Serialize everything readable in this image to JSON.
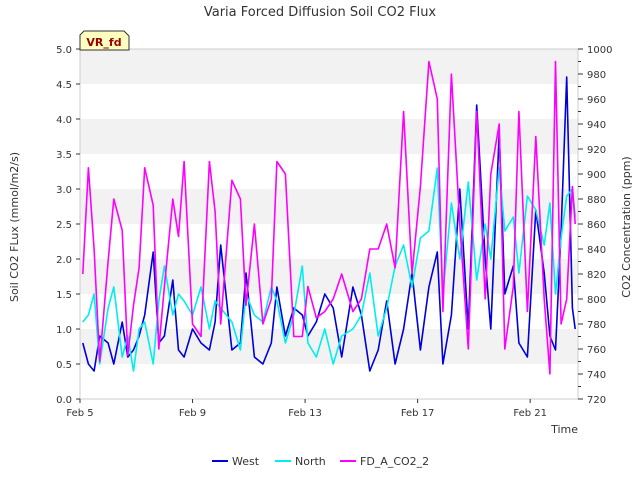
{
  "chart_data": {
    "type": "line",
    "title": "Varia Forced Diffusion Soil CO2 Flux",
    "badge": "VR_fd",
    "xlabel": "Time",
    "ylabel_left": "Soil CO2 FLux (mmol/m2/s)",
    "ylabel_right": "CO2 Concentration (ppm)",
    "x_ticks": [
      "Feb 5",
      "Feb 9",
      "Feb 13",
      "Feb 17",
      "Feb 21"
    ],
    "x_tick_days": [
      5,
      9,
      13,
      17,
      21
    ],
    "xlim_days": [
      5,
      22.7
    ],
    "ylim_left": [
      0,
      5
    ],
    "ylim_right": [
      720,
      1000
    ],
    "y_ticks_left": [
      "0.0",
      "0.5",
      "1.0",
      "1.5",
      "2.0",
      "2.5",
      "3.0",
      "3.5",
      "4.0",
      "4.5",
      "5.0"
    ],
    "y_ticks_right": [
      "720",
      "740",
      "760",
      "780",
      "800",
      "820",
      "840",
      "860",
      "880",
      "900",
      "920",
      "940",
      "960",
      "980",
      "1000"
    ],
    "legend_position": "bottom-center",
    "grid": "alternating horizontal bands",
    "series": [
      {
        "name": "West",
        "color": "#0000dd",
        "axis": "left",
        "x": [
          5.1,
          5.3,
          5.5,
          5.7,
          6.0,
          6.2,
          6.5,
          6.7,
          6.9,
          7.1,
          7.3,
          7.6,
          7.8,
          8.0,
          8.3,
          8.5,
          8.7,
          9.0,
          9.3,
          9.6,
          9.8,
          10.0,
          10.4,
          10.7,
          10.9,
          11.2,
          11.5,
          11.8,
          12.0,
          12.3,
          12.6,
          12.9,
          13.1,
          13.4,
          13.7,
          14.0,
          14.3,
          14.7,
          15.0,
          15.3,
          15.6,
          15.9,
          16.2,
          16.5,
          16.8,
          17.1,
          17.4,
          17.7,
          17.9,
          18.2,
          18.5,
          18.8,
          19.1,
          19.4,
          19.6,
          19.9,
          20.1,
          20.4,
          20.6,
          20.9,
          21.2,
          21.5,
          21.7,
          21.9,
          22.1,
          22.3,
          22.5,
          22.6
        ],
        "y": [
          0.8,
          0.5,
          0.4,
          0.9,
          0.8,
          0.5,
          1.1,
          0.6,
          0.7,
          0.9,
          1.2,
          2.1,
          0.8,
          0.9,
          1.7,
          0.7,
          0.6,
          1.0,
          0.8,
          0.7,
          1.1,
          2.2,
          0.7,
          0.8,
          1.8,
          0.6,
          0.5,
          0.8,
          1.6,
          0.9,
          1.3,
          1.2,
          0.9,
          1.1,
          1.5,
          1.3,
          0.6,
          1.6,
          1.2,
          0.4,
          0.7,
          1.4,
          0.5,
          1.0,
          1.8,
          0.7,
          1.6,
          2.1,
          0.5,
          1.2,
          3.0,
          1.0,
          4.2,
          2.0,
          1.0,
          3.8,
          1.5,
          1.9,
          0.8,
          0.6,
          2.7,
          1.8,
          0.9,
          0.7,
          2.4,
          4.6,
          1.3,
          1.0
        ]
      },
      {
        "name": "North",
        "color": "#00eeee",
        "axis": "left",
        "x": [
          5.1,
          5.3,
          5.5,
          5.7,
          6.0,
          6.2,
          6.5,
          6.7,
          6.9,
          7.1,
          7.3,
          7.6,
          7.8,
          8.0,
          8.3,
          8.5,
          8.7,
          9.0,
          9.3,
          9.6,
          9.8,
          10.0,
          10.4,
          10.7,
          10.9,
          11.2,
          11.5,
          11.8,
          12.0,
          12.3,
          12.6,
          12.9,
          13.1,
          13.4,
          13.7,
          14.0,
          14.3,
          14.7,
          15.0,
          15.3,
          15.6,
          15.9,
          16.2,
          16.5,
          16.8,
          17.1,
          17.4,
          17.7,
          17.9,
          18.2,
          18.5,
          18.8,
          19.1,
          19.4,
          19.6,
          19.9,
          20.1,
          20.4,
          20.6,
          20.9,
          21.2,
          21.5,
          21.7,
          21.9,
          22.1,
          22.3,
          22.5,
          22.6
        ],
        "y": [
          1.1,
          1.2,
          1.5,
          0.5,
          1.3,
          1.6,
          0.6,
          0.9,
          0.4,
          1.0,
          1.1,
          0.5,
          1.4,
          1.9,
          1.2,
          1.5,
          1.4,
          1.2,
          1.6,
          1.0,
          1.4,
          1.3,
          1.1,
          0.7,
          1.5,
          1.2,
          1.1,
          1.6,
          1.4,
          0.8,
          1.2,
          1.9,
          0.8,
          0.6,
          1.0,
          0.5,
          0.9,
          1.0,
          1.2,
          1.8,
          0.9,
          1.3,
          1.9,
          2.2,
          1.6,
          2.3,
          2.4,
          3.3,
          1.5,
          2.8,
          2.0,
          3.1,
          1.7,
          2.5,
          2.0,
          3.3,
          2.4,
          2.6,
          1.8,
          2.9,
          2.7,
          2.2,
          2.8,
          1.5,
          2.3,
          2.9,
          3.0,
          2.6
        ]
      },
      {
        "name": "FD_A_CO2_2",
        "color": "#ff00ff",
        "axis": "right",
        "x": [
          5.1,
          5.3,
          5.5,
          5.7,
          6.0,
          6.2,
          6.5,
          6.7,
          6.9,
          7.1,
          7.3,
          7.6,
          7.8,
          8.0,
          8.3,
          8.5,
          8.7,
          9.0,
          9.3,
          9.6,
          9.8,
          10.0,
          10.4,
          10.7,
          10.9,
          11.2,
          11.5,
          11.8,
          12.0,
          12.3,
          12.6,
          12.9,
          13.1,
          13.4,
          13.7,
          14.0,
          14.3,
          14.7,
          15.0,
          15.3,
          15.6,
          15.9,
          16.2,
          16.5,
          16.8,
          17.1,
          17.4,
          17.7,
          17.9,
          18.2,
          18.5,
          18.8,
          19.1,
          19.4,
          19.6,
          19.9,
          20.1,
          20.4,
          20.6,
          20.9,
          21.2,
          21.5,
          21.7,
          21.9,
          22.1,
          22.3,
          22.5,
          22.6
        ],
        "y": [
          820,
          905,
          840,
          750,
          830,
          880,
          855,
          755,
          795,
          825,
          905,
          875,
          760,
          810,
          880,
          850,
          910,
          780,
          770,
          910,
          870,
          780,
          895,
          880,
          795,
          860,
          780,
          800,
          910,
          900,
          770,
          770,
          810,
          785,
          790,
          800,
          820,
          790,
          800,
          840,
          840,
          860,
          825,
          950,
          820,
          890,
          990,
          960,
          790,
          980,
          860,
          760,
          950,
          800,
          900,
          940,
          760,
          810,
          950,
          790,
          930,
          800,
          740,
          990,
          780,
          800,
          890,
          860
        ]
      }
    ]
  }
}
